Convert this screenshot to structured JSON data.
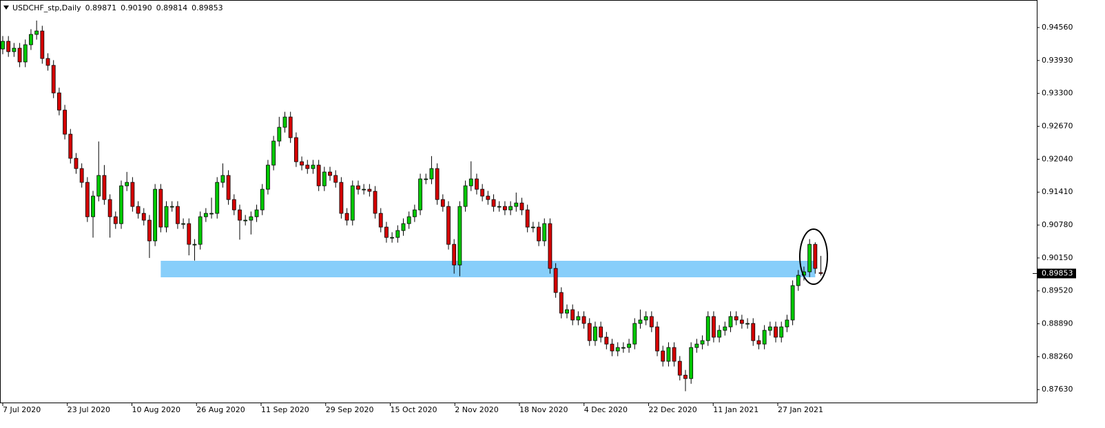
{
  "chart_data": {
    "type": "candlestick",
    "title": "USDCHF_stp,Daily",
    "last_bar_labels": [
      "0.89871",
      "0.90190",
      "0.89814",
      "0.89853"
    ],
    "x_labels": [
      "7 Jul 2020",
      "23 Jul 2020",
      "10 Aug 2020",
      "26 Aug 2020",
      "11 Sep 2020",
      "29 Sep 2020",
      "15 Oct 2020",
      "2 Nov 2020",
      "18 Nov 2020",
      "4 Dec 2020",
      "22 Dec 2020",
      "11 Jan 2021",
      "27 Jan 2021"
    ],
    "open": [
      0.9415,
      0.94297,
      0.94099,
      0.94165,
      0.93902,
      0.94231,
      0.94429,
      0.94494,
      0.93968,
      0.93836,
      0.93309,
      0.9298,
      0.92519,
      0.92058,
      0.91861,
      0.91597,
      0.90939,
      0.91334,
      0.91729,
      0.91268,
      0.90939,
      0.90807,
      0.91531,
      0.91597,
      0.91136,
      0.91004,
      0.90873,
      0.90477,
      0.91465,
      0.90741,
      0.91136,
      0.91136,
      0.90807,
      0.90807,
      0.90411,
      0.90411,
      0.90939,
      0.91004,
      0.91004,
      0.91597,
      0.91729,
      0.91268,
      0.9107,
      0.90873,
      0.90873,
      0.90939,
      0.9107,
      0.91465,
      0.91927,
      0.92387,
      0.92651,
      0.92848,
      0.92453,
      0.91992,
      0.91927,
      0.91861,
      0.91927,
      0.91531,
      0.91795,
      0.91729,
      0.91597,
      0.91004,
      0.90873,
      0.91531,
      0.91465,
      0.91465,
      0.91426,
      0.91004,
      0.90741,
      0.90543,
      0.90543,
      0.90675,
      0.90807,
      0.90939,
      0.9107,
      0.91663,
      0.91663,
      0.91861,
      0.91268,
      0.91136,
      0.90411,
      0.90016,
      0.91136,
      0.91531,
      0.91663,
      0.91465,
      0.91334,
      0.91268,
      0.91136,
      0.91136,
      0.9107,
      0.91136,
      0.91202,
      0.9107,
      0.90741,
      0.90741,
      0.90477,
      0.90807,
      0.8995,
      0.89489,
      0.89094,
      0.8916,
      0.88963,
      0.89029,
      0.88897,
      0.88568,
      0.88831,
      0.88634,
      0.88502,
      0.8837,
      0.88436,
      0.88436,
      0.88502,
      0.88897,
      0.88963,
      0.89029,
      0.88831,
      0.8837,
      0.88173,
      0.88436,
      0.88173,
      0.87907,
      0.87842,
      0.88436,
      0.88502,
      0.88568,
      0.89029,
      0.88634,
      0.88765,
      0.88831,
      0.89029,
      0.88963,
      0.88897,
      0.88897,
      0.88568,
      0.88502,
      0.88765,
      0.88831,
      0.88634,
      0.88831,
      0.88963,
      0.89621,
      0.89819,
      0.89885,
      0.90411,
      0.89871
    ],
    "high": [
      0.94397,
      0.94397,
      0.94265,
      0.94265,
      0.94331,
      0.94529,
      0.94694,
      0.94594,
      0.94068,
      0.93936,
      0.93409,
      0.9308,
      0.92619,
      0.92158,
      0.91961,
      0.91697,
      0.91434,
      0.9238,
      0.91929,
      0.91368,
      0.91039,
      0.91631,
      0.91797,
      0.91697,
      0.91236,
      0.91104,
      0.90973,
      0.91565,
      0.91565,
      0.91236,
      0.91236,
      0.91236,
      0.90907,
      0.90907,
      0.90511,
      0.91039,
      0.91104,
      0.91304,
      0.91697,
      0.9196,
      0.91829,
      0.91368,
      0.9117,
      0.90973,
      0.91039,
      0.9117,
      0.91565,
      0.92027,
      0.92487,
      0.92851,
      0.92948,
      0.92948,
      0.92553,
      0.92092,
      0.92027,
      0.92027,
      0.92027,
      0.91895,
      0.91895,
      0.91829,
      0.91697,
      0.91104,
      0.91631,
      0.91631,
      0.91565,
      0.91565,
      0.91526,
      0.91104,
      0.90841,
      0.90643,
      0.90775,
      0.90907,
      0.91039,
      0.9117,
      0.91763,
      0.91763,
      0.921,
      0.91961,
      0.91368,
      0.91236,
      0.90511,
      0.91236,
      0.91631,
      0.92,
      0.91763,
      0.91565,
      0.91434,
      0.91368,
      0.91236,
      0.91236,
      0.91236,
      0.91402,
      0.91302,
      0.9117,
      0.90841,
      0.90841,
      0.90907,
      0.90907,
      0.9005,
      0.89589,
      0.8926,
      0.8926,
      0.89129,
      0.89129,
      0.88997,
      0.88931,
      0.88931,
      0.88734,
      0.88602,
      0.88536,
      0.88536,
      0.88602,
      0.88997,
      0.89163,
      0.89129,
      0.89129,
      0.88931,
      0.8847,
      0.88536,
      0.88536,
      0.88273,
      0.88007,
      0.88536,
      0.88602,
      0.88668,
      0.89129,
      0.89129,
      0.88865,
      0.88931,
      0.89129,
      0.89129,
      0.89063,
      0.88997,
      0.88997,
      0.88668,
      0.88865,
      0.88931,
      0.88931,
      0.88931,
      0.89063,
      0.89721,
      0.89919,
      0.89985,
      0.90511,
      0.9045,
      0.9019
    ],
    "low": [
      0.9405,
      0.93999,
      0.93999,
      0.93802,
      0.93802,
      0.94131,
      0.94329,
      0.93868,
      0.93736,
      0.93209,
      0.9288,
      0.92419,
      0.91958,
      0.91761,
      0.91497,
      0.90839,
      0.90539,
      0.91234,
      0.91168,
      0.90539,
      0.90707,
      0.90707,
      0.91431,
      0.91036,
      0.90904,
      0.90773,
      0.9015,
      0.90377,
      0.90641,
      0.90641,
      0.91036,
      0.90707,
      0.90707,
      0.902,
      0.901,
      0.90311,
      0.90839,
      0.90904,
      0.90904,
      0.91497,
      0.91168,
      0.9097,
      0.905,
      0.90773,
      0.906,
      0.90839,
      0.9097,
      0.91365,
      0.91827,
      0.92287,
      0.92551,
      0.92353,
      0.91892,
      0.91827,
      0.91761,
      0.91761,
      0.91431,
      0.91431,
      0.91629,
      0.91497,
      0.90904,
      0.90773,
      0.90773,
      0.91365,
      0.91365,
      0.91326,
      0.90904,
      0.90641,
      0.90443,
      0.90443,
      0.90443,
      0.90575,
      0.90707,
      0.90839,
      0.9097,
      0.91563,
      0.91563,
      0.91168,
      0.91036,
      0.90311,
      0.8985,
      0.898,
      0.91036,
      0.91431,
      0.91365,
      0.91234,
      0.91168,
      0.91036,
      0.91036,
      0.9097,
      0.9097,
      0.91036,
      0.9097,
      0.90641,
      0.90641,
      0.90377,
      0.90377,
      0.8985,
      0.89389,
      0.88994,
      0.88994,
      0.88863,
      0.88863,
      0.88797,
      0.88468,
      0.88468,
      0.88534,
      0.88402,
      0.8827,
      0.8827,
      0.88336,
      0.88336,
      0.88402,
      0.88797,
      0.88863,
      0.88731,
      0.8827,
      0.88073,
      0.88073,
      0.88073,
      0.87807,
      0.876,
      0.87742,
      0.88336,
      0.88402,
      0.88468,
      0.88534,
      0.88534,
      0.88665,
      0.88731,
      0.88863,
      0.88797,
      0.88797,
      0.88468,
      0.88402,
      0.88402,
      0.88665,
      0.88534,
      0.88534,
      0.88731,
      0.88863,
      0.89521,
      0.89719,
      0.89785,
      0.8985,
      0.89814
    ],
    "close": [
      0.94297,
      0.94099,
      0.94165,
      0.93902,
      0.94231,
      0.94429,
      0.94494,
      0.93968,
      0.93836,
      0.93309,
      0.9298,
      0.92519,
      0.92058,
      0.91861,
      0.91597,
      0.90939,
      0.91334,
      0.91729,
      0.91268,
      0.90939,
      0.90807,
      0.91531,
      0.91597,
      0.91136,
      0.91004,
      0.90873,
      0.90477,
      0.91465,
      0.90741,
      0.91136,
      0.91136,
      0.90807,
      0.90807,
      0.90411,
      0.90411,
      0.90939,
      0.91004,
      0.91004,
      0.91597,
      0.91729,
      0.91268,
      0.9107,
      0.90873,
      0.90873,
      0.90939,
      0.9107,
      0.91465,
      0.91927,
      0.92387,
      0.92651,
      0.92848,
      0.92453,
      0.91992,
      0.91927,
      0.91861,
      0.91927,
      0.91531,
      0.91795,
      0.91729,
      0.91597,
      0.91004,
      0.90873,
      0.91531,
      0.91465,
      0.91465,
      0.91426,
      0.91004,
      0.90741,
      0.90543,
      0.90543,
      0.90675,
      0.90807,
      0.90939,
      0.9107,
      0.91663,
      0.91663,
      0.91861,
      0.91268,
      0.91136,
      0.90411,
      0.90016,
      0.91136,
      0.91531,
      0.91663,
      0.91465,
      0.91334,
      0.91268,
      0.91136,
      0.91136,
      0.9107,
      0.91136,
      0.91202,
      0.9107,
      0.90741,
      0.90741,
      0.90477,
      0.90807,
      0.8995,
      0.89489,
      0.89094,
      0.8916,
      0.88963,
      0.89029,
      0.88897,
      0.88568,
      0.88831,
      0.88634,
      0.88502,
      0.8837,
      0.88436,
      0.88436,
      0.88502,
      0.88897,
      0.88963,
      0.89029,
      0.88831,
      0.8837,
      0.88173,
      0.88436,
      0.88173,
      0.87907,
      0.87842,
      0.88436,
      0.88502,
      0.88568,
      0.89029,
      0.88634,
      0.88765,
      0.88831,
      0.89029,
      0.88963,
      0.88897,
      0.88897,
      0.88568,
      0.88502,
      0.88765,
      0.88831,
      0.88634,
      0.88831,
      0.88963,
      0.89621,
      0.89819,
      0.89885,
      0.90411,
      0.8995,
      0.89853
    ],
    "colors": {
      "up": "#00c800",
      "down": "#d40000",
      "wick": "#000000"
    },
    "ylim": [
      0.87383,
      0.95061
    ],
    "yticks": [
      {
        "value": 0.9456,
        "label": "0.94560"
      },
      {
        "value": 0.9393,
        "label": "0.93930"
      },
      {
        "value": 0.933,
        "label": "0.93300"
      },
      {
        "value": 0.9267,
        "label": "0.92670"
      },
      {
        "value": 0.9204,
        "label": "0.92040"
      },
      {
        "value": 0.9141,
        "label": "0.91410"
      },
      {
        "value": 0.9078,
        "label": "0.90780"
      },
      {
        "value": 0.9015,
        "label": "0.90150"
      },
      {
        "value": 0.8952,
        "label": "0.89520"
      },
      {
        "value": 0.8889,
        "label": "0.88890"
      },
      {
        "value": 0.8826,
        "label": "0.88260"
      },
      {
        "value": 0.8763,
        "label": "0.87630"
      }
    ],
    "zone": {
      "y": [
        0.8978,
        0.90096
      ],
      "x": [
        28,
        144
      ],
      "color": "#87cefa"
    },
    "grid": false
  }
}
